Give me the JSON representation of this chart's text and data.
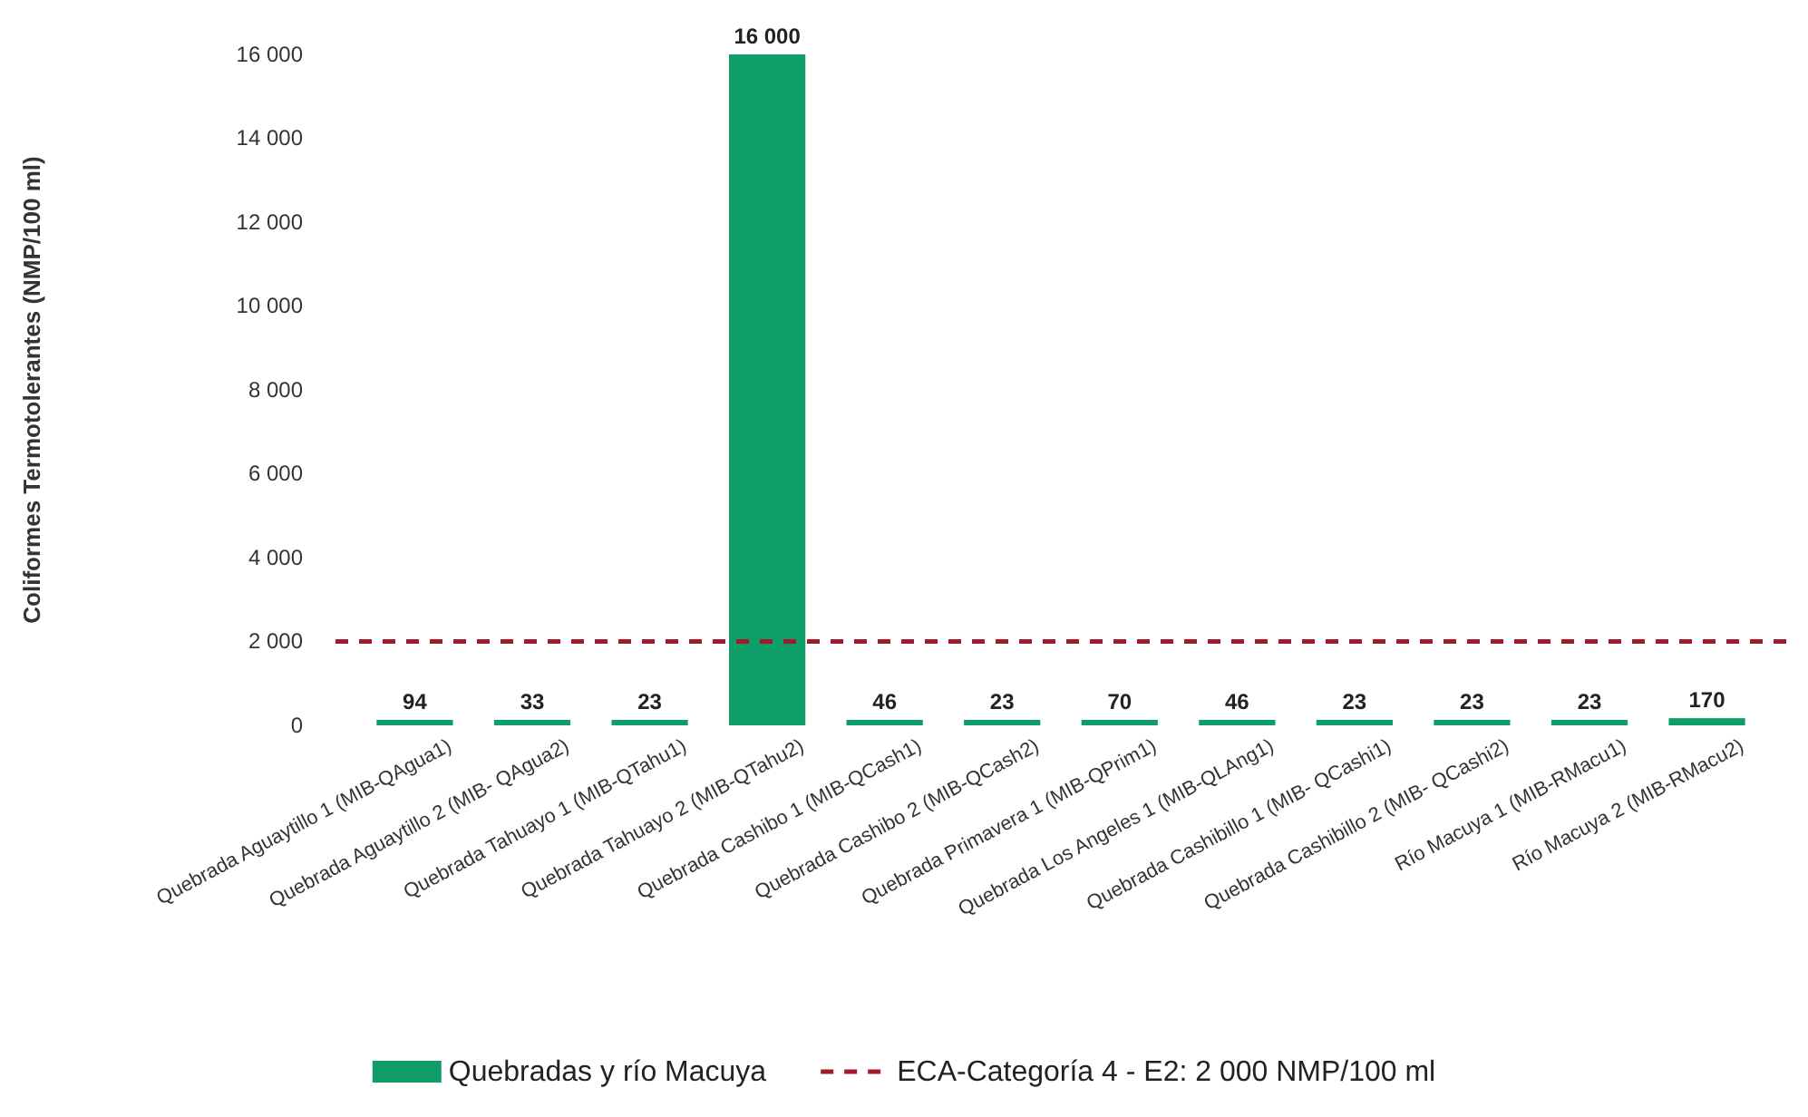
{
  "chart_data": {
    "type": "bar",
    "ylabel": "Coliformes Termotolerantes (NMP/100 ml)",
    "categories": [
      "Quebrada Aguaytillo 1 (MIB-QAgua1)",
      "Quebrada Aguaytillo 2 (MIB- QAgua2)",
      "Quebrada Tahuayo 1 (MIB-QTahu1)",
      "Quebrada Tahuayo 2 (MIB-QTahu2)",
      "Quebrada Cashibo 1 (MIB-QCash1)",
      "Quebrada Cashibo 2 (MIB-QCash2)",
      "Quebrada Primavera 1 (MIB-QPrim1)",
      "Quebrada Los Angeles 1 (MIB-QLAng1)",
      "Quebrada Cashibillo 1 (MIB- QCashi1)",
      "Quebrada Cashibillo 2 (MIB- QCashi2)",
      "Río Macuya 1 (MIB-RMacu1)",
      "Río Macuya 2 (MIB-RMacu2)"
    ],
    "series": [
      {
        "name": "Quebradas y río Macuya",
        "color": "#0f9d68",
        "values": [
          94,
          33,
          23,
          16000,
          46,
          23,
          70,
          46,
          23,
          23,
          23,
          170
        ],
        "value_labels": [
          "94",
          "33",
          "23",
          "16 000",
          "46",
          "23",
          "70",
          "46",
          "23",
          "23",
          "23",
          "170"
        ]
      }
    ],
    "ylim": [
      0,
      16000
    ],
    "yticks": [
      0,
      {
        "value": 2000,
        "label": "2 000"
      },
      {
        "value": 4000,
        "label": "4 000"
      },
      {
        "value": 6000,
        "label": "6 000"
      },
      {
        "value": 8000,
        "label": "8 000"
      },
      {
        "value": 10000,
        "label": "10 000"
      },
      {
        "value": 12000,
        "label": "12 000"
      },
      {
        "value": 14000,
        "label": "14 000"
      },
      {
        "value": 16000,
        "label": "16 000"
      }
    ],
    "ref_lines": [
      {
        "axis": "y",
        "value": 2000,
        "label": "ECA-Categoría 4 - E2: 2 000 NMP/100 ml",
        "color": "#a01c2c",
        "line_style": "dashed"
      }
    ],
    "grid": false,
    "legend": "bottom"
  }
}
